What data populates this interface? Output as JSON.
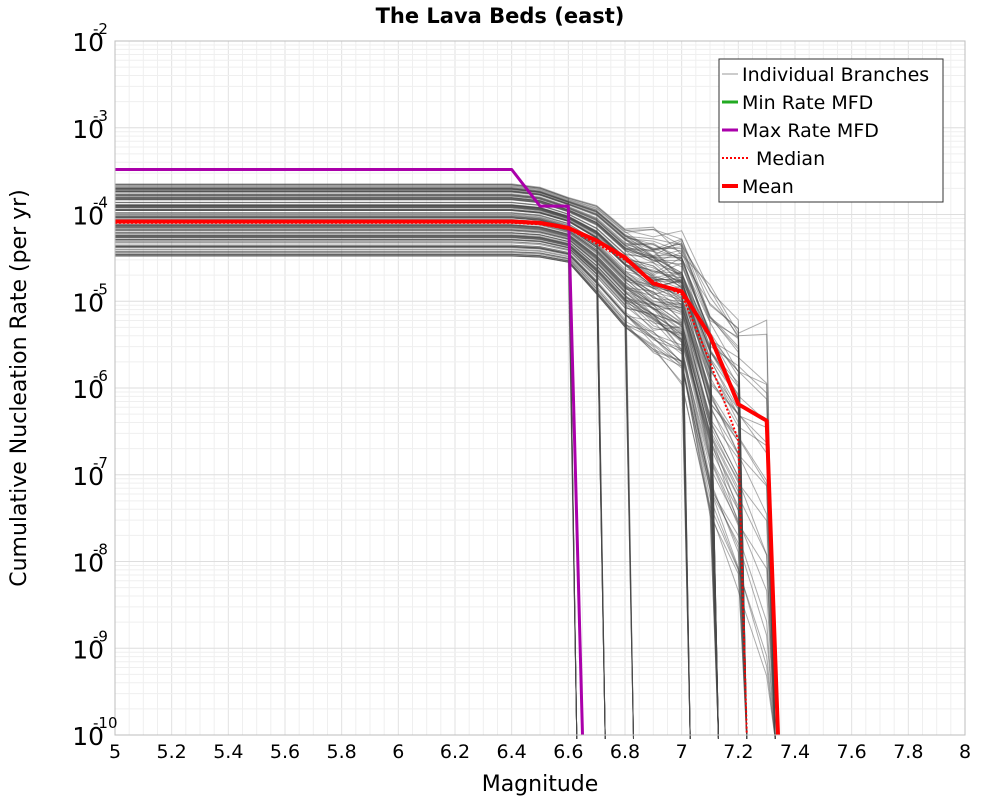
{
  "chart_data": {
    "type": "line",
    "title": "The Lava Beds (east)",
    "xlabel": "Magnitude",
    "ylabel": "Cumulative Nucleation Rate (per yr)",
    "xlim": [
      5,
      8
    ],
    "ylim_log10": [
      -10,
      -2
    ],
    "y_scale": "log",
    "x_ticks": [
      "5",
      "5.2",
      "5.4",
      "5.6",
      "5.8",
      "6",
      "6.2",
      "6.4",
      "6.6",
      "6.8",
      "7",
      "7.2",
      "7.4",
      "7.6",
      "7.8",
      "8"
    ],
    "y_tick_base": "10",
    "y_tick_exponents": [
      "-10",
      "-9",
      "-8",
      "-7",
      "-6",
      "-5",
      "-4",
      "-3",
      "-2"
    ],
    "legend_position": "top-right",
    "legend": [
      {
        "label": "Individual Branches",
        "color": "#9a9a9a",
        "style": "thin"
      },
      {
        "label": "Min Rate MFD",
        "color": "#22aa22",
        "style": "solid"
      },
      {
        "label": "Max Rate MFD",
        "color": "#aa00aa",
        "style": "solid"
      },
      {
        "label": "Median",
        "color": "#ff0000",
        "style": "dotted"
      },
      {
        "label": "Mean",
        "color": "#ff0000",
        "style": "thick"
      }
    ],
    "series": [
      {
        "name": "Max Rate MFD",
        "color": "#aa00aa",
        "points": [
          [
            5.0,
            0.00033
          ],
          [
            6.4,
            0.00033
          ],
          [
            6.5,
            0.000125
          ],
          [
            6.6,
            0.000125
          ],
          [
            6.65,
            1e-10
          ]
        ]
      },
      {
        "name": "Mean",
        "color": "#ff0000",
        "points": [
          [
            5.0,
            8.3e-05
          ],
          [
            6.4,
            8.3e-05
          ],
          [
            6.5,
            8e-05
          ],
          [
            6.6,
            7e-05
          ],
          [
            6.7,
            5e-05
          ],
          [
            6.8,
            3.2e-05
          ],
          [
            6.9,
            1.6e-05
          ],
          [
            7.0,
            1.3e-05
          ],
          [
            7.1,
            4e-06
          ],
          [
            7.2,
            6.5e-07
          ],
          [
            7.3,
            4.2e-07
          ],
          [
            7.34,
            1e-10
          ]
        ]
      },
      {
        "name": "Median",
        "color": "#ff0000",
        "points": [
          [
            5.0,
            8e-05
          ],
          [
            6.4,
            8e-05
          ],
          [
            6.5,
            7.7e-05
          ],
          [
            6.6,
            6.8e-05
          ],
          [
            6.7,
            4.6e-05
          ],
          [
            6.8,
            3e-05
          ],
          [
            6.9,
            1.7e-05
          ],
          [
            7.0,
            1.2e-05
          ],
          [
            7.1,
            2e-06
          ],
          [
            7.2,
            2.5e-07
          ],
          [
            7.23,
            1e-10
          ]
        ]
      },
      {
        "name": "Individual Branches",
        "color": "#555555",
        "upper_envelope": [
          [
            5.0,
            0.00023
          ],
          [
            6.4,
            0.00023
          ],
          [
            6.5,
            0.00021
          ],
          [
            6.6,
            0.00016
          ],
          [
            6.7,
            0.00013
          ],
          [
            6.8,
            7e-05
          ],
          [
            6.9,
            5.5e-05
          ],
          [
            7.0,
            5e-05
          ],
          [
            7.1,
            1.2e-05
          ],
          [
            7.2,
            6e-06
          ],
          [
            7.3,
            6e-06
          ]
        ],
        "lower_envelope": [
          [
            5.0,
            3.3e-05
          ],
          [
            6.4,
            3.3e-05
          ],
          [
            6.5,
            3.2e-05
          ],
          [
            6.6,
            2.8e-05
          ],
          [
            6.7,
            1.2e-05
          ],
          [
            6.8,
            5e-06
          ],
          [
            6.9,
            3e-06
          ],
          [
            7.0,
            1.5e-06
          ],
          [
            7.1,
            4e-08
          ],
          [
            7.2,
            5e-09
          ]
        ],
        "count_drawn": 160
      }
    ]
  }
}
